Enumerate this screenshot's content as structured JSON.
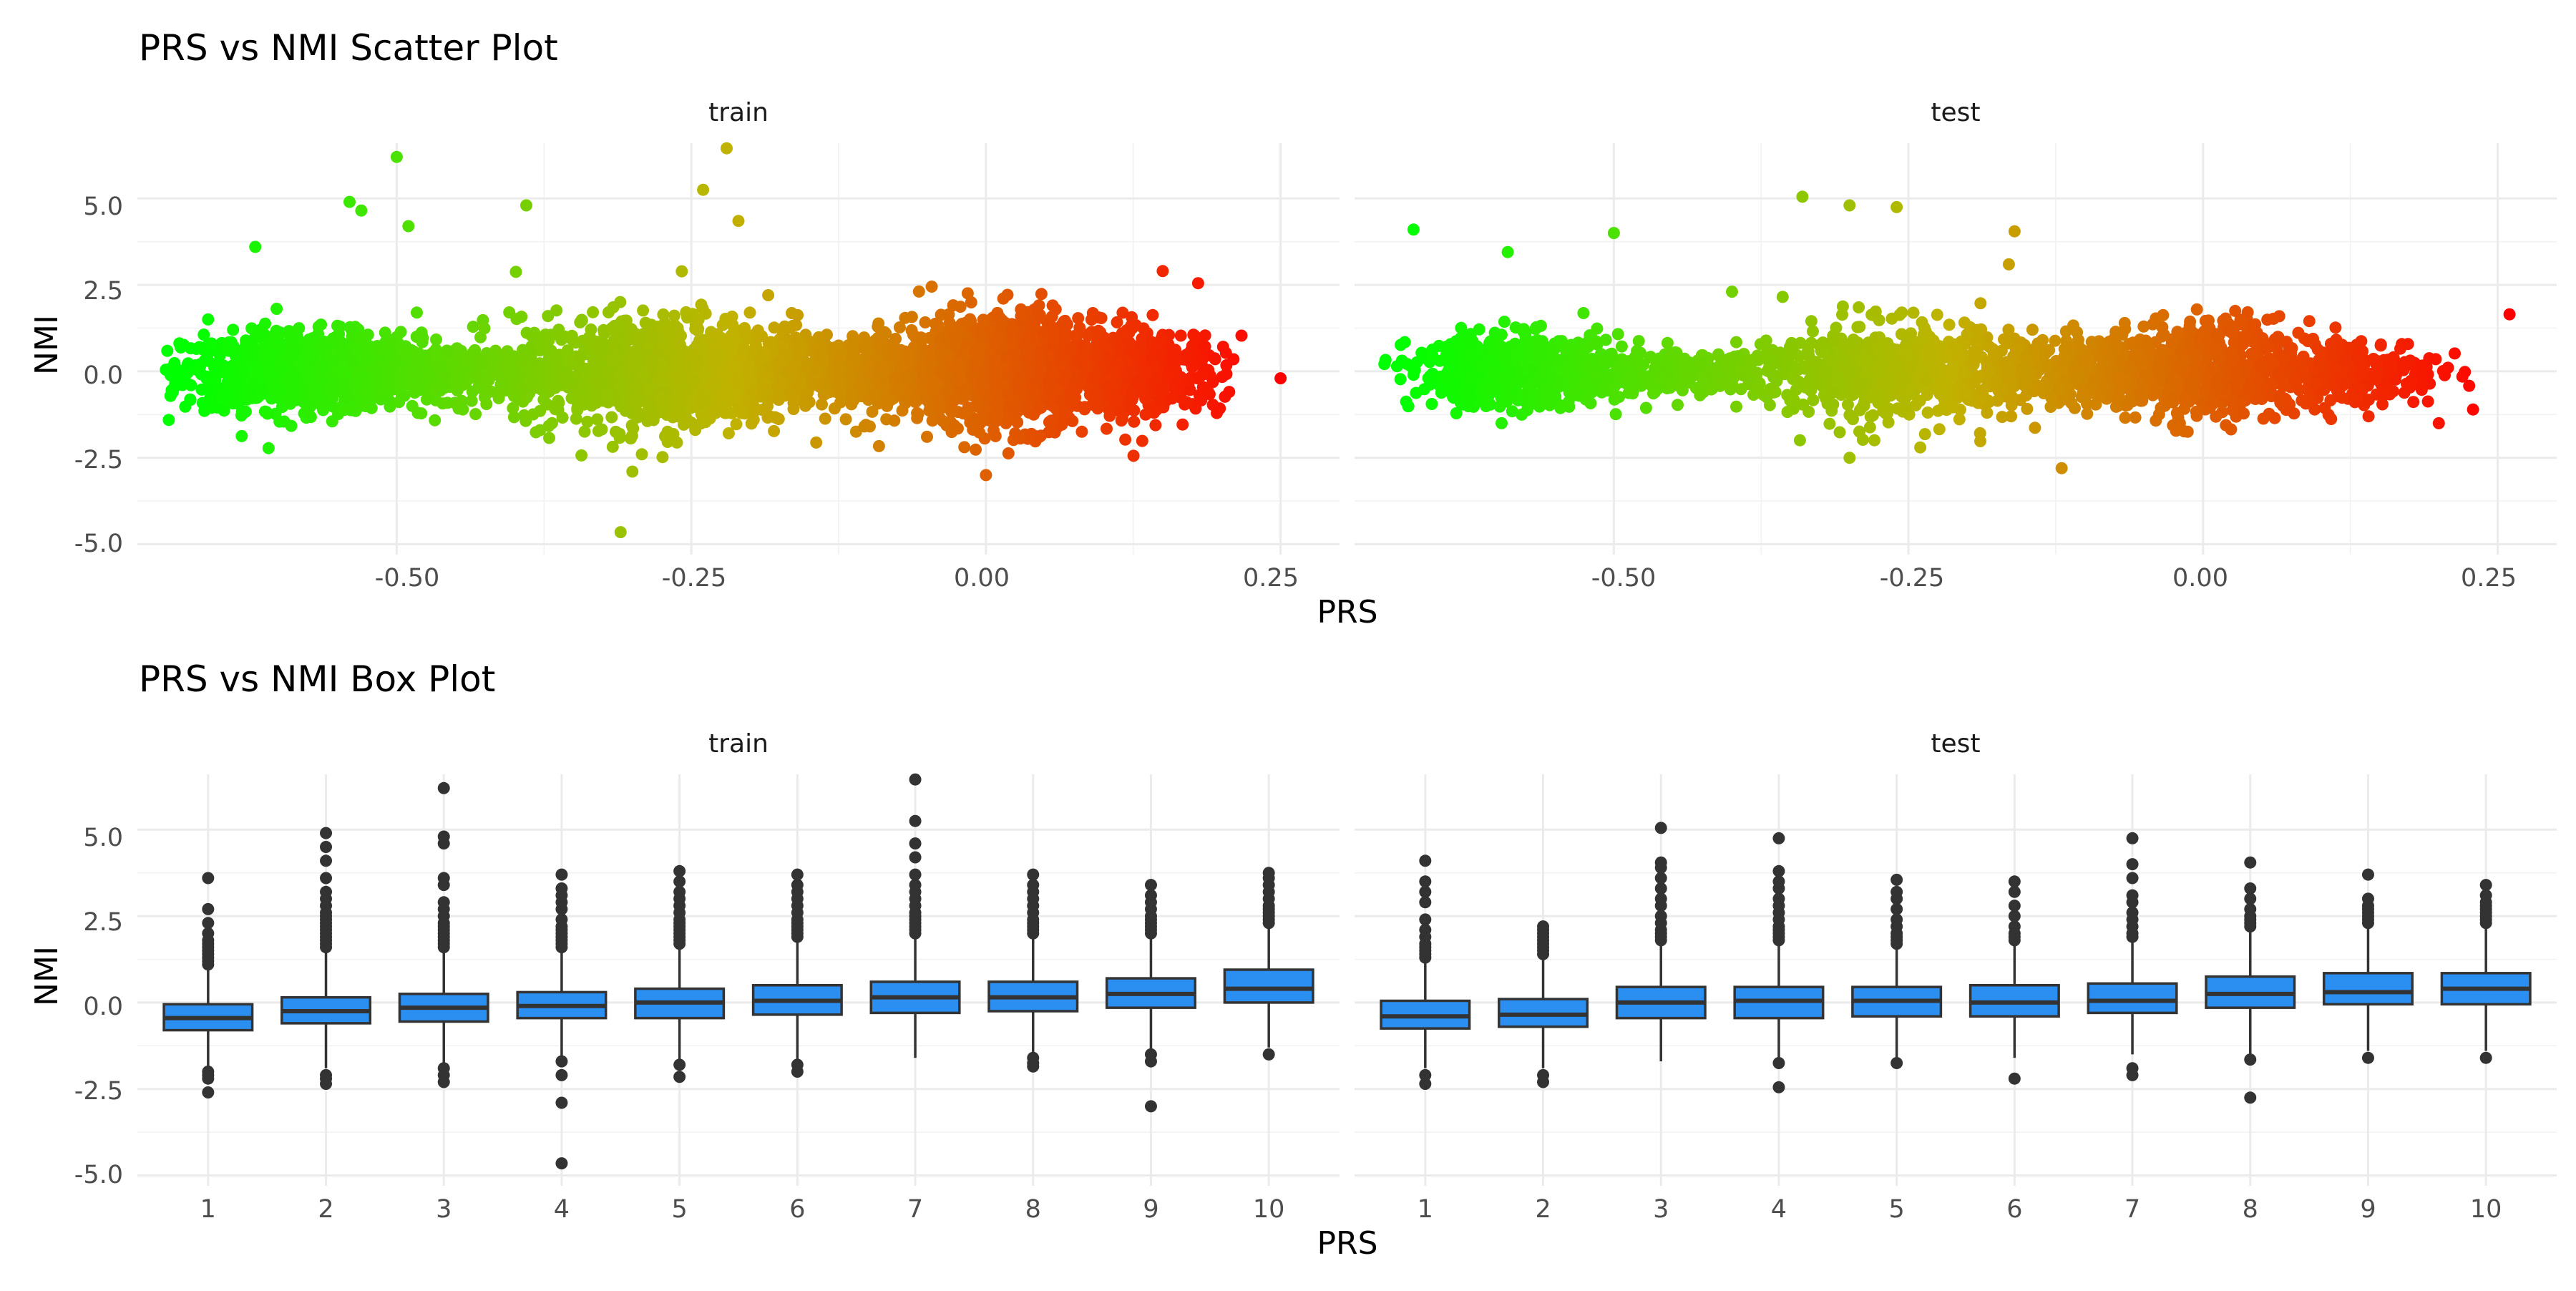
{
  "colors": {
    "gradient_low": "#00ff00",
    "gradient_mid": "#c1b200",
    "gradient_high": "#ff0000",
    "box_fill": "#2b8ff2",
    "box_stroke": "#333333",
    "grid": "#ebebeb"
  },
  "chart_data": [
    {
      "type": "scatter",
      "title": "PRS vs NMI Scatter Plot",
      "xlabel": "PRS",
      "ylabel": "NMI",
      "xlim": [
        -0.72,
        0.3
      ],
      "ylim": [
        -5.3,
        6.6
      ],
      "x_ticks": [
        -0.5,
        -0.25,
        0.0,
        0.25
      ],
      "x_tick_labels": [
        "-0.50",
        "-0.25",
        "0.00",
        "0.25"
      ],
      "y_ticks": [
        -5,
        -2.5,
        0,
        2.5,
        5
      ],
      "y_tick_labels": [
        "-5.0",
        "-2.5",
        "0.0",
        "2.5",
        "5.0"
      ],
      "grid": true,
      "color_by": "PRS",
      "facets": [
        {
          "label": "train",
          "density_clusters": [
            {
              "x_center": -0.58,
              "x_spread": 0.05,
              "y_spread": 0.65,
              "n": 1000
            },
            {
              "x_center": -0.45,
              "x_spread": 0.07,
              "y_spread": 0.45,
              "n": 450
            },
            {
              "x_center": -0.28,
              "x_spread": 0.06,
              "y_spread": 0.95,
              "n": 1000
            },
            {
              "x_center": -0.14,
              "x_spread": 0.06,
              "y_spread": 0.6,
              "n": 600
            },
            {
              "x_center": 0.01,
              "x_spread": 0.045,
              "y_spread": 0.95,
              "n": 1100
            },
            {
              "x_center": 0.13,
              "x_spread": 0.035,
              "y_spread": 0.7,
              "n": 450
            }
          ],
          "outliers": [
            {
              "x": -0.5,
              "y": 6.2
            },
            {
              "x": -0.22,
              "y": 6.45
            },
            {
              "x": -0.54,
              "y": 4.9
            },
            {
              "x": -0.53,
              "y": 4.65
            },
            {
              "x": -0.39,
              "y": 4.8
            },
            {
              "x": -0.24,
              "y": 5.25
            },
            {
              "x": -0.21,
              "y": 4.35
            },
            {
              "x": -0.31,
              "y": -4.65
            },
            {
              "x": -0.3,
              "y": -2.9
            },
            {
              "x": 0.0,
              "y": -3.0
            },
            {
              "x": 0.25,
              "y": -0.2
            },
            {
              "x": 0.21,
              "y": 0.35
            },
            {
              "x": -0.62,
              "y": 3.6
            },
            {
              "x": -0.66,
              "y": 1.5
            },
            {
              "x": -0.69,
              "y": -0.6
            },
            {
              "x": 0.15,
              "y": 2.9
            },
            {
              "x": 0.18,
              "y": 2.55
            },
            {
              "x": -0.49,
              "y": 4.2
            }
          ]
        },
        {
          "label": "test",
          "density_clusters": [
            {
              "x_center": -0.58,
              "x_spread": 0.045,
              "y_spread": 0.6,
              "n": 600
            },
            {
              "x_center": -0.45,
              "x_spread": 0.06,
              "y_spread": 0.4,
              "n": 250
            },
            {
              "x_center": -0.27,
              "x_spread": 0.055,
              "y_spread": 0.85,
              "n": 550
            },
            {
              "x_center": -0.13,
              "x_spread": 0.06,
              "y_spread": 0.55,
              "n": 350
            },
            {
              "x_center": 0.0,
              "x_spread": 0.045,
              "y_spread": 0.85,
              "n": 600
            },
            {
              "x_center": 0.13,
              "x_spread": 0.035,
              "y_spread": 0.6,
              "n": 250
            }
          ],
          "outliers": [
            {
              "x": -0.67,
              "y": 4.1
            },
            {
              "x": -0.5,
              "y": 4.0
            },
            {
              "x": -0.34,
              "y": 5.05
            },
            {
              "x": -0.3,
              "y": 4.8
            },
            {
              "x": -0.26,
              "y": 4.75
            },
            {
              "x": -0.16,
              "y": 4.05
            },
            {
              "x": -0.12,
              "y": -2.8
            },
            {
              "x": -0.3,
              "y": -2.5
            },
            {
              "x": -0.24,
              "y": -2.2
            },
            {
              "x": 0.26,
              "y": 1.65
            },
            {
              "x": 0.2,
              "y": -1.5
            },
            {
              "x": 0.22,
              "y": -0.15
            },
            {
              "x": -0.59,
              "y": 3.45
            },
            {
              "x": -0.67,
              "y": -0.1
            }
          ]
        }
      ]
    },
    {
      "type": "box",
      "title": "PRS vs NMI Box Plot",
      "xlabel": "PRS",
      "ylabel": "NMI",
      "categories": [
        "1",
        "2",
        "3",
        "4",
        "5",
        "6",
        "7",
        "8",
        "9",
        "10"
      ],
      "ylim": [
        -5.3,
        6.6
      ],
      "y_ticks": [
        -5,
        -2.5,
        0,
        2.5,
        5
      ],
      "y_tick_labels": [
        "-5.0",
        "-2.5",
        "0.0",
        "2.5",
        "5.0"
      ],
      "grid": true,
      "facets": [
        {
          "label": "train",
          "boxes": [
            {
              "q1": -0.8,
              "median": -0.45,
              "q3": -0.05,
              "whisker_low": -1.9,
              "whisker_high": 1.0,
              "outliers": [
                1.1,
                1.2,
                1.3,
                1.4,
                1.5,
                1.6,
                1.7,
                1.8,
                2.0,
                2.3,
                2.7,
                3.6,
                -2.0,
                -2.1,
                -2.2,
                -2.6
              ]
            },
            {
              "q1": -0.6,
              "median": -0.25,
              "q3": 0.15,
              "whisker_low": -1.9,
              "whisker_high": 1.5,
              "outliers": [
                1.6,
                1.7,
                1.8,
                1.9,
                2.0,
                2.1,
                2.2,
                2.3,
                2.4,
                2.5,
                2.6,
                2.8,
                3.0,
                3.2,
                3.6,
                4.1,
                4.5,
                4.9,
                -2.1,
                -2.2,
                -2.35
              ]
            },
            {
              "q1": -0.55,
              "median": -0.15,
              "q3": 0.25,
              "whisker_low": -1.8,
              "whisker_high": 1.5,
              "outliers": [
                1.6,
                1.7,
                1.8,
                1.9,
                2.0,
                2.1,
                2.2,
                2.3,
                2.5,
                2.7,
                2.9,
                3.4,
                3.6,
                4.6,
                4.8,
                6.2,
                -1.9,
                -2.1,
                -2.3
              ]
            },
            {
              "q1": -0.45,
              "median": -0.1,
              "q3": 0.3,
              "whisker_low": -1.6,
              "whisker_high": 1.5,
              "outliers": [
                1.6,
                1.7,
                1.8,
                1.9,
                2.0,
                2.1,
                2.2,
                2.4,
                2.7,
                2.9,
                3.1,
                3.3,
                3.7,
                -1.7,
                -2.1,
                -2.9,
                -4.65
              ]
            },
            {
              "q1": -0.45,
              "median": 0.0,
              "q3": 0.4,
              "whisker_low": -1.7,
              "whisker_high": 1.6,
              "outliers": [
                1.7,
                1.8,
                1.9,
                2.0,
                2.1,
                2.2,
                2.3,
                2.4,
                2.6,
                2.8,
                3.0,
                3.2,
                3.5,
                3.8,
                -1.8,
                -2.15
              ]
            },
            {
              "q1": -0.35,
              "median": 0.05,
              "q3": 0.5,
              "whisker_low": -1.7,
              "whisker_high": 1.8,
              "outliers": [
                1.9,
                2.0,
                2.1,
                2.2,
                2.3,
                2.4,
                2.6,
                2.8,
                3.0,
                3.2,
                3.4,
                3.7,
                -1.8,
                -2.0
              ]
            },
            {
              "q1": -0.3,
              "median": 0.15,
              "q3": 0.6,
              "whisker_low": -1.6,
              "whisker_high": 1.9,
              "outliers": [
                2.0,
                2.1,
                2.2,
                2.3,
                2.4,
                2.5,
                2.6,
                2.8,
                3.0,
                3.2,
                3.4,
                3.7,
                4.2,
                4.6,
                5.25,
                6.45
              ]
            },
            {
              "q1": -0.25,
              "median": 0.15,
              "q3": 0.6,
              "whisker_low": -1.5,
              "whisker_high": 1.9,
              "outliers": [
                2.0,
                2.1,
                2.2,
                2.3,
                2.4,
                2.6,
                2.8,
                3.0,
                3.2,
                3.4,
                3.7,
                -1.6,
                -1.75,
                -1.85
              ]
            },
            {
              "q1": -0.15,
              "median": 0.25,
              "q3": 0.7,
              "whisker_low": -1.4,
              "whisker_high": 1.9,
              "outliers": [
                2.0,
                2.1,
                2.2,
                2.3,
                2.4,
                2.5,
                2.7,
                2.9,
                3.1,
                3.4,
                -1.5,
                -1.7,
                -3.0
              ]
            },
            {
              "q1": 0.0,
              "median": 0.4,
              "q3": 0.95,
              "whisker_low": -1.3,
              "whisker_high": 2.2,
              "outliers": [
                2.3,
                2.4,
                2.5,
                2.6,
                2.7,
                2.8,
                3.0,
                3.2,
                3.4,
                3.6,
                3.75,
                -1.5
              ]
            }
          ]
        },
        {
          "label": "test",
          "boxes": [
            {
              "q1": -0.75,
              "median": -0.4,
              "q3": 0.05,
              "whisker_low": -1.9,
              "whisker_high": 1.2,
              "outliers": [
                1.3,
                1.4,
                1.5,
                1.6,
                1.7,
                1.9,
                2.1,
                2.4,
                2.9,
                3.2,
                3.5,
                4.1,
                -2.1,
                -2.35
              ]
            },
            {
              "q1": -0.7,
              "median": -0.35,
              "q3": 0.1,
              "whisker_low": -1.9,
              "whisker_high": 1.3,
              "outliers": [
                1.4,
                1.5,
                1.6,
                1.7,
                1.8,
                1.9,
                2.0,
                2.1,
                2.2,
                -2.1,
                -2.3
              ]
            },
            {
              "q1": -0.45,
              "median": 0.0,
              "q3": 0.45,
              "whisker_low": -1.7,
              "whisker_high": 1.7,
              "outliers": [
                1.8,
                1.9,
                2.0,
                2.1,
                2.3,
                2.5,
                2.8,
                3.0,
                3.3,
                3.6,
                3.9,
                4.05,
                5.05
              ]
            },
            {
              "q1": -0.45,
              "median": 0.05,
              "q3": 0.45,
              "whisker_low": -1.7,
              "whisker_high": 1.7,
              "outliers": [
                1.8,
                1.9,
                2.0,
                2.1,
                2.2,
                2.4,
                2.6,
                2.8,
                3.0,
                3.3,
                3.5,
                3.8,
                4.75,
                -1.75,
                -2.45
              ]
            },
            {
              "q1": -0.4,
              "median": 0.05,
              "q3": 0.45,
              "whisker_low": -1.6,
              "whisker_high": 1.6,
              "outliers": [
                1.7,
                1.8,
                1.9,
                2.0,
                2.2,
                2.4,
                2.7,
                3.0,
                3.2,
                3.55,
                -1.75
              ]
            },
            {
              "q1": -0.4,
              "median": 0.0,
              "q3": 0.5,
              "whisker_low": -1.6,
              "whisker_high": 1.7,
              "outliers": [
                1.8,
                1.9,
                2.0,
                2.2,
                2.5,
                2.8,
                3.2,
                3.5,
                -2.2
              ]
            },
            {
              "q1": -0.3,
              "median": 0.05,
              "q3": 0.55,
              "whisker_low": -1.5,
              "whisker_high": 1.8,
              "outliers": [
                1.9,
                2.0,
                2.2,
                2.4,
                2.6,
                2.9,
                3.1,
                3.6,
                4.0,
                4.75,
                -1.9,
                -2.1
              ]
            },
            {
              "q1": -0.15,
              "median": 0.25,
              "q3": 0.75,
              "whisker_low": -1.5,
              "whisker_high": 2.1,
              "outliers": [
                2.2,
                2.3,
                2.4,
                2.5,
                2.7,
                3.0,
                3.3,
                4.05,
                -1.65,
                -2.75
              ]
            },
            {
              "q1": -0.05,
              "median": 0.3,
              "q3": 0.85,
              "whisker_low": -1.4,
              "whisker_high": 2.2,
              "outliers": [
                2.3,
                2.4,
                2.5,
                2.6,
                2.7,
                2.8,
                3.0,
                3.7,
                -1.6
              ]
            },
            {
              "q1": -0.05,
              "median": 0.4,
              "q3": 0.85,
              "whisker_low": -1.4,
              "whisker_high": 2.2,
              "outliers": [
                2.3,
                2.4,
                2.5,
                2.6,
                2.7,
                2.8,
                2.9,
                3.1,
                3.4,
                -1.6
              ]
            }
          ]
        }
      ]
    }
  ]
}
